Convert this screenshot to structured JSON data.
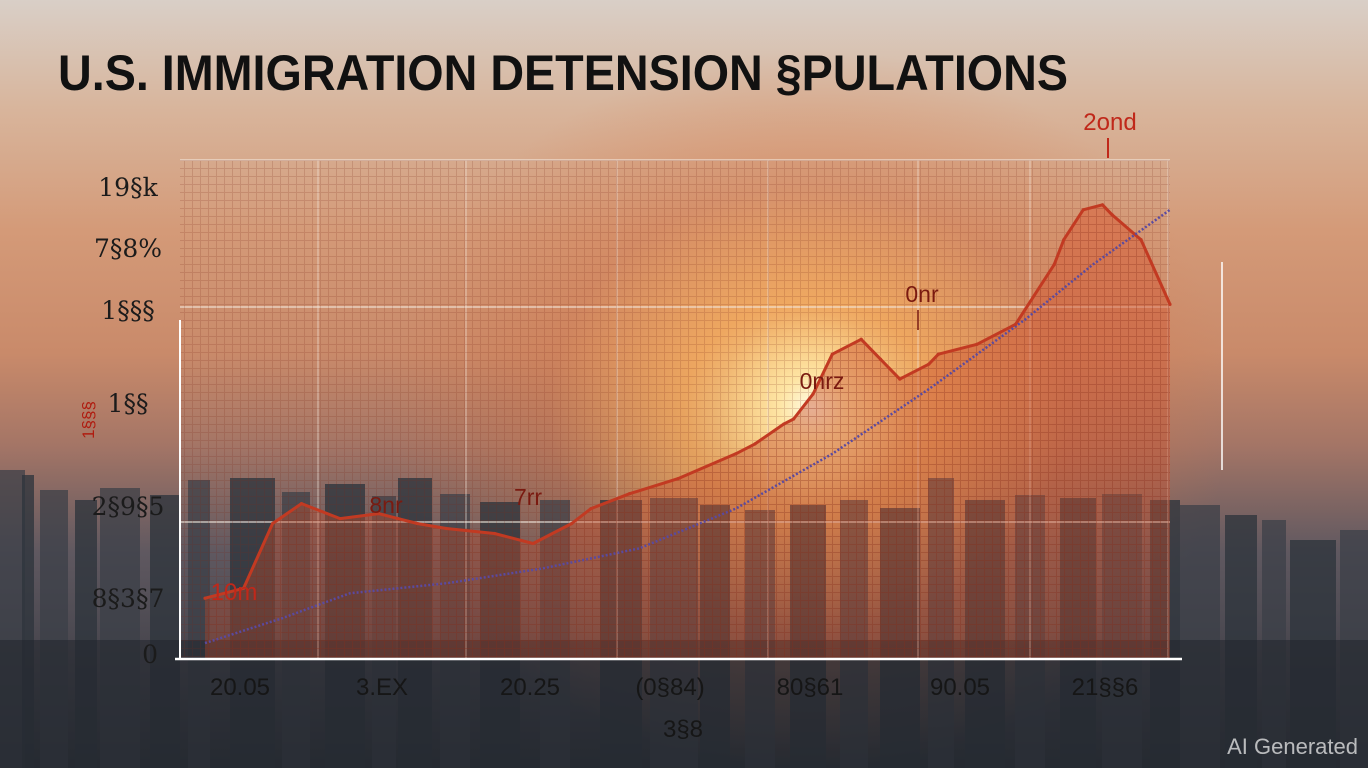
{
  "title": "U.S. IMMIGRATION DETENSION §PULATIONS",
  "watermark": "AI Generated",
  "colors": {
    "primary_line": "#c23a22",
    "area_fill": "#d9603a",
    "trend_line": "#5a4aa0",
    "gridline": "#f2e6dc",
    "axis": "#ffffff"
  },
  "chart_data": {
    "type": "line",
    "title": "U.S. IMMIGRATION DETENSION §PULATIONS",
    "y_tick_labels": [
      "0",
      "8§3§7",
      "2§9§5",
      "1§§",
      "1§§§",
      "7§8%",
      "19§k"
    ],
    "y_side_label": "1§§§",
    "x_tick_labels": [
      "20.05",
      "3.EX",
      "20.25",
      "(0§84)",
      "80§61",
      "90.05",
      "21§§6"
    ],
    "x_axis_extra_label": "3§8",
    "ylim": [
      0,
      100
    ],
    "grid": true,
    "annotations": [
      "10m",
      "8nr",
      "7rr",
      "0nrz",
      "0nr",
      "2ond"
    ],
    "series": [
      {
        "role": "area-line",
        "x": [
          0,
          4,
          7,
          10,
          14,
          18,
          20,
          22,
          25,
          30,
          34,
          38,
          40,
          44,
          49,
          55,
          57,
          60,
          61,
          63,
          65,
          68,
          70,
          72,
          75,
          76,
          80,
          84,
          88,
          89,
          91,
          93,
          94,
          97,
          100
        ],
        "y": [
          12,
          14,
          27,
          31,
          28,
          29,
          28,
          27,
          26,
          25,
          23,
          27,
          30,
          33,
          36,
          41,
          43,
          47,
          48,
          53,
          61,
          64,
          60,
          56,
          59,
          61,
          63,
          67,
          79,
          84,
          90,
          91,
          89,
          84,
          71
        ]
      },
      {
        "role": "trend",
        "x": [
          0,
          8,
          15,
          25,
          35,
          45,
          55,
          65,
          75,
          85,
          92,
          100
        ],
        "y": [
          3,
          8,
          13,
          15,
          18,
          22,
          30,
          41,
          54,
          68,
          79,
          90
        ]
      }
    ]
  }
}
